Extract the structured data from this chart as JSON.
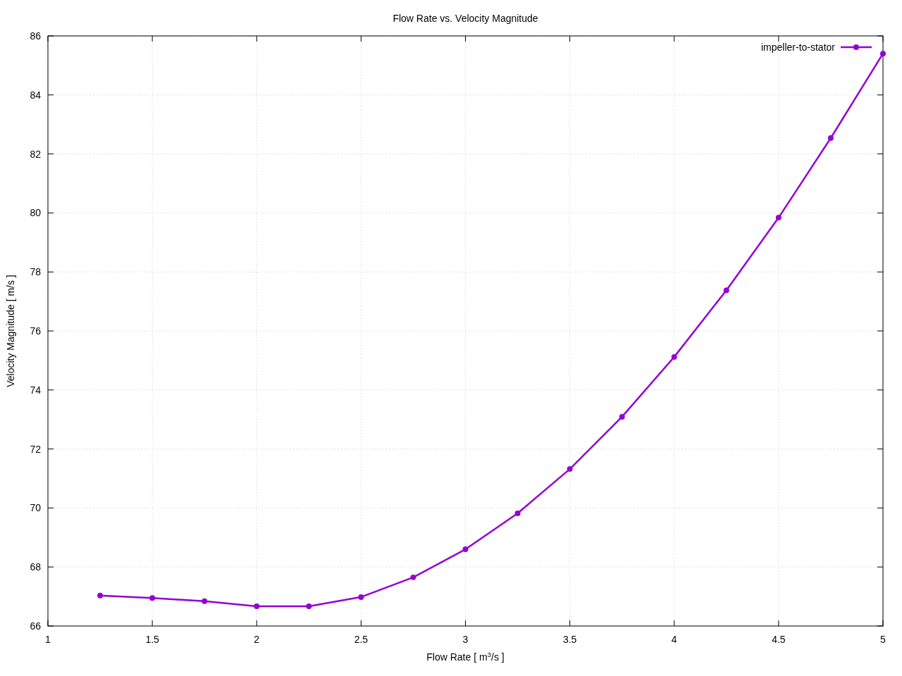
{
  "chart_data": {
    "type": "line",
    "title": "Flow Rate vs. Velocity Magnitude",
    "xlabel": "Flow Rate [ m$^{3}$/s ]",
    "ylabel": "Velocity Magnitude [ m/s ]",
    "x": [
      1.25,
      1.5,
      1.75,
      2,
      2.25,
      2.5,
      2.75,
      3,
      3.25,
      3.5,
      3.75,
      4,
      4.25,
      4.5,
      4.75,
      5
    ],
    "series": [
      {
        "name": "impeller-to-stator",
        "color": "#9400d3",
        "values": [
          67.03,
          66.95,
          66.84,
          66.67,
          66.67,
          66.98,
          67.65,
          68.6,
          69.82,
          71.32,
          73.09,
          75.12,
          77.38,
          79.84,
          82.54,
          85.4
        ]
      }
    ],
    "xlim": [
      1,
      5
    ],
    "xticks": [
      1,
      1.5,
      2,
      2.5,
      3,
      3.5,
      4,
      4.5,
      5
    ],
    "ylim": [
      66,
      86
    ],
    "yticks": [
      66,
      68,
      70,
      72,
      74,
      76,
      78,
      80,
      82,
      84,
      86
    ],
    "grid": true,
    "legend": "top right",
    "marker": "circle",
    "line_style": "solid"
  }
}
